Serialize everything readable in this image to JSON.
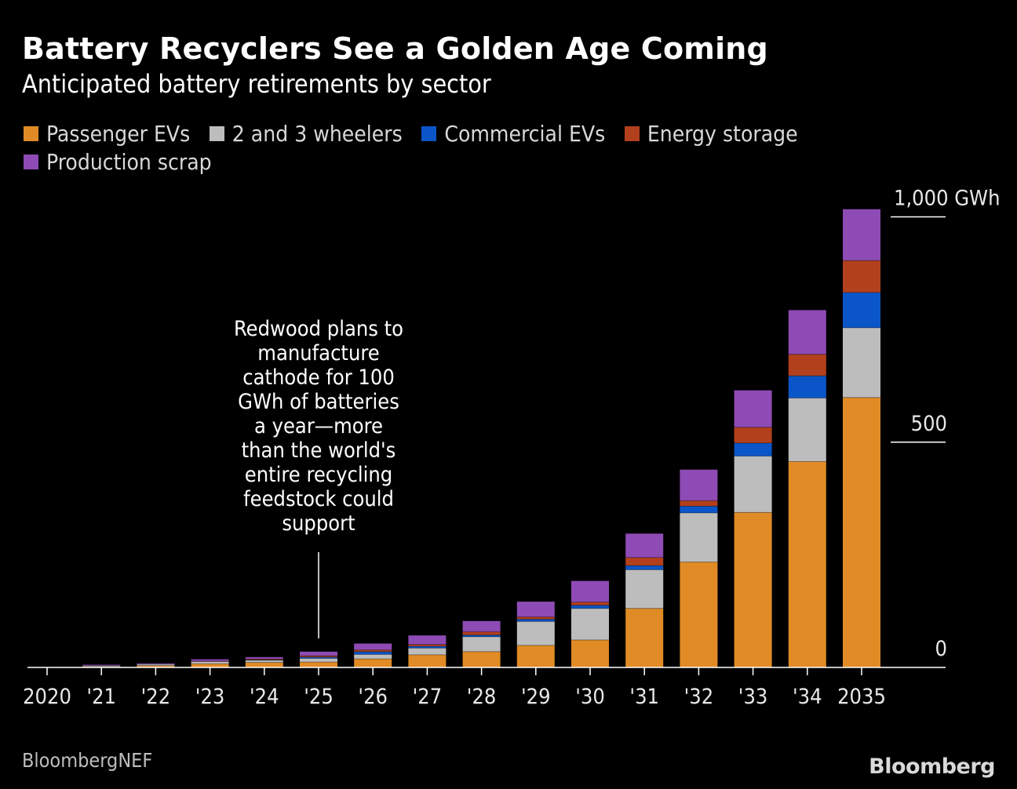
{
  "title": "Battery Recyclers See a Golden Age Coming",
  "subtitle": "Anticipated battery retirements by sector",
  "source": "BloombergNEF",
  "brand": "Bloomberg",
  "chart_data": {
    "type": "bar",
    "stacked": true,
    "categories": [
      "2020",
      "'21",
      "'22",
      "'23",
      "'24",
      "'25",
      "'26",
      "'27",
      "'28",
      "'29",
      "'30",
      "'31",
      "'32",
      "'33",
      "'34",
      "2035"
    ],
    "series": [
      {
        "name": "Passenger EVs",
        "color": "#e08b25",
        "values": [
          0,
          2,
          4,
          8,
          11,
          12,
          19,
          28,
          35,
          49,
          61,
          131,
          234,
          344,
          457,
          599
        ]
      },
      {
        "name": "2 and 3 wheelers",
        "color": "#bdbdbd",
        "values": [
          0,
          2,
          3,
          5,
          5,
          8,
          10,
          15,
          33,
          53,
          70,
          86,
          109,
          125,
          141,
          155
        ]
      },
      {
        "name": "Commercial EVs",
        "color": "#0a56c9",
        "values": [
          0,
          0,
          0,
          0,
          1,
          3,
          6,
          4,
          4,
          5,
          7,
          9,
          15,
          29,
          49,
          78
        ]
      },
      {
        "name": "Energy storage",
        "color": "#b3401c",
        "values": [
          0,
          0,
          0,
          1,
          2,
          3,
          4,
          4,
          7,
          5,
          7,
          18,
          12,
          35,
          48,
          71
        ]
      },
      {
        "name": "Production scrap",
        "color": "#8e4bb5",
        "values": [
          0,
          2,
          2,
          4,
          4,
          9,
          14,
          20,
          24,
          34,
          47,
          53,
          69,
          82,
          98,
          114
        ]
      }
    ],
    "y_ticks": [
      {
        "value": 0,
        "label": "0"
      },
      {
        "value": 500,
        "label": "500"
      },
      {
        "value": 1000,
        "label": "1,000 GWh"
      }
    ],
    "ylim": [
      0,
      1030
    ],
    "xlabel": "",
    "ylabel": "",
    "legend_position": "top-left",
    "grid": false,
    "annotation": {
      "category": "'25",
      "lines": [
        "Redwood plans to",
        "manufacture",
        "cathode for 100",
        "GWh of batteries",
        "a year—more",
        "than the world's",
        "entire recycling",
        "feedstock could",
        "support"
      ]
    }
  }
}
